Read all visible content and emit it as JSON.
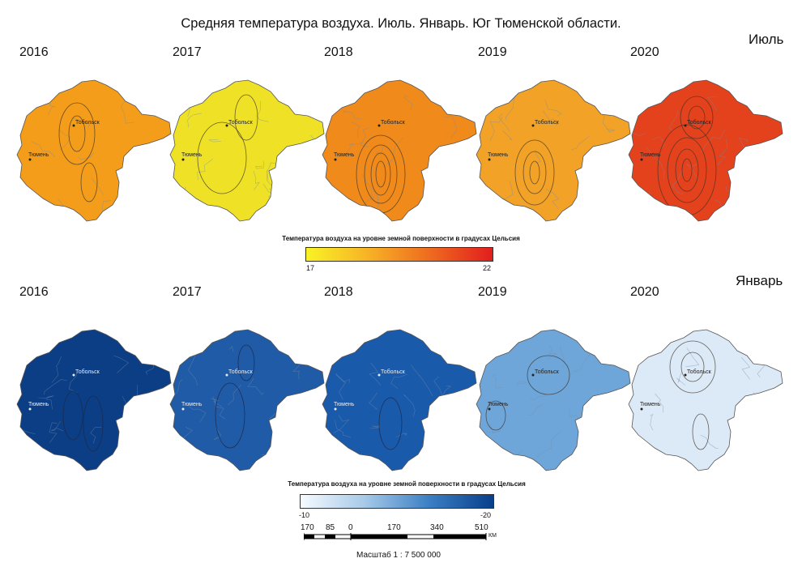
{
  "title": "Средняя температура воздуха. Июль. Январь. Юг Тюменской области.",
  "sections": {
    "july": {
      "label": "Июль",
      "years": [
        "2016",
        "2017",
        "2018",
        "2019",
        "2020"
      ],
      "fill_colors": [
        "#f39d1a",
        "#efe226",
        "#ef8a1b",
        "#f1a227",
        "#e3421c"
      ],
      "legend": {
        "title": "Температура воздуха на уровне земной поверхности в градусах Цельсия",
        "min": "17",
        "max": "22",
        "gradient": [
          "#f9f326",
          "#f7b226",
          "#ee6a1f",
          "#e21e1e"
        ]
      }
    },
    "january": {
      "label": "Январь",
      "years": [
        "2016",
        "2017",
        "2018",
        "2019",
        "2020"
      ],
      "fill_colors": [
        "#0b3e85",
        "#1f5ba6",
        "#1a5aab",
        "#6ea6d9",
        "#dce9f6"
      ],
      "legend": {
        "title": "Температура воздуха на уровне земной поверхности в градусах Цельсия",
        "min": "-10",
        "max": "-20",
        "gradient": [
          "#f7fbff",
          "#a6c9e8",
          "#3b7fc4",
          "#083f8a"
        ]
      }
    }
  },
  "cities": {
    "tobolsk": "Тобольск",
    "tyumen": "Тюмень"
  },
  "scalebar": {
    "labels": [
      "170",
      "85",
      "0",
      "170",
      "340",
      "510"
    ],
    "unit": "КМ",
    "caption": "Масштаб 1 : 7 500 000"
  }
}
